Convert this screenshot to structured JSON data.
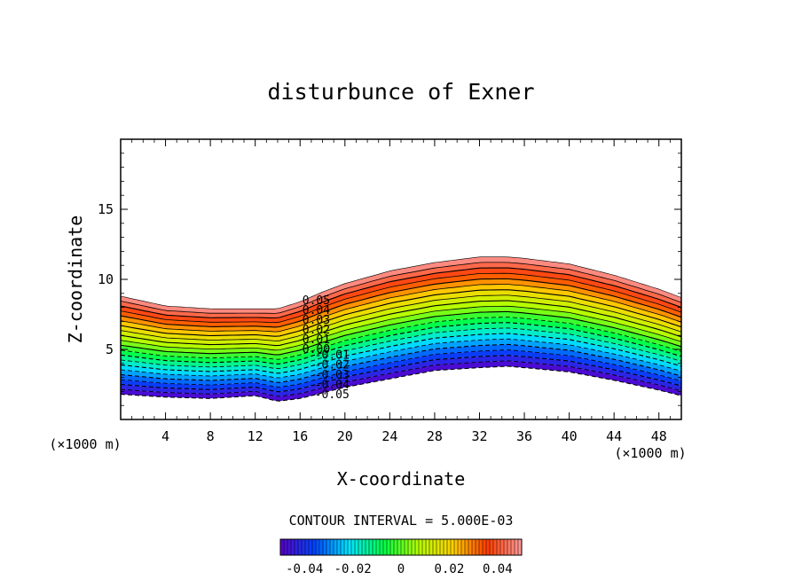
{
  "chart_data": {
    "type": "contour",
    "title": "disturbunce of Exner",
    "xlabel": "X-coordinate",
    "ylabel": "Z-coordinate",
    "x_unit_label": "(×1000 m)",
    "z_unit_label": "(×1000 m)",
    "xlim": [
      0,
      50
    ],
    "ylim": [
      0,
      20
    ],
    "x_ticks": [
      "4",
      "8",
      "12",
      "16",
      "20",
      "24",
      "28",
      "32",
      "36",
      "40",
      "44",
      "48"
    ],
    "y_ticks": [
      "5",
      "10",
      "15"
    ],
    "contour_interval_text": "CONTOUR INTERVAL = 5.000E-03",
    "contour_interval": 0.005,
    "value_range": [
      -0.05,
      0.05
    ],
    "contour_labels": [
      "0.05",
      "0.04",
      "0.03",
      "0.02",
      "0.01",
      "0.00",
      "-0.01",
      "-0.02",
      "-0.03",
      "-0.04",
      "-0.05"
    ],
    "negative_contours": "dashed",
    "colorbar_ticks": [
      "-0.04",
      "-0.02",
      "0",
      "0.02",
      "0.04"
    ],
    "colormap": [
      "#5a00c8",
      "#0046ff",
      "#00e6ff",
      "#00ff46",
      "#b4ff00",
      "#ffd200",
      "#ff3c00",
      "#ff9b9b"
    ],
    "band_shape": {
      "x": [
        0,
        4,
        8,
        12,
        14,
        16,
        18,
        20,
        24,
        28,
        32,
        34.5,
        36,
        40,
        44,
        48,
        50
      ],
      "top_z": [
        8.8,
        8.1,
        7.9,
        7.9,
        7.9,
        8.4,
        9.1,
        9.7,
        10.6,
        11.2,
        11.6,
        11.6,
        11.5,
        11.1,
        10.3,
        9.3,
        8.7
      ],
      "bottom_z": [
        1.8,
        1.6,
        1.5,
        1.7,
        1.3,
        1.5,
        1.9,
        2.3,
        2.9,
        3.5,
        3.7,
        3.8,
        3.7,
        3.4,
        2.8,
        2.1,
        1.7
      ]
    }
  }
}
